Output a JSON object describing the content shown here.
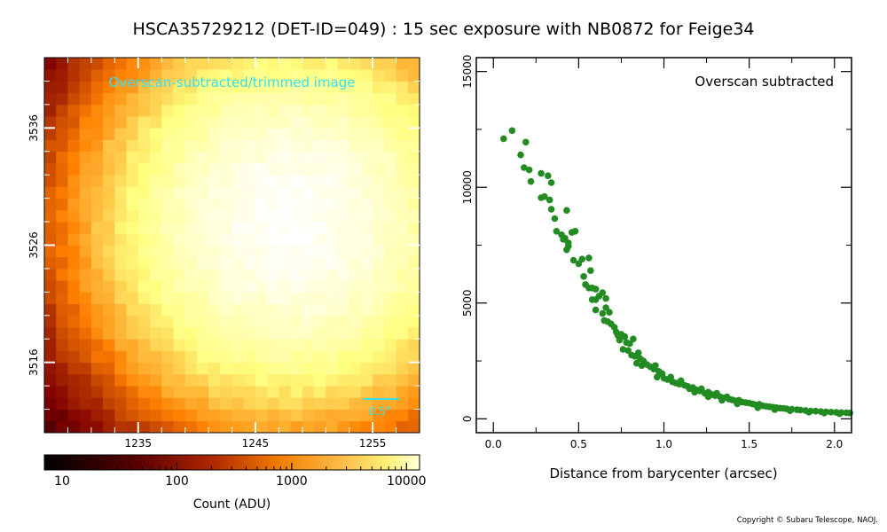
{
  "title": "HSCA35729212 (DET-ID=049) :  15 sec exposure with NB0872 for Feige34",
  "copyright": "Copyright © Subaru Telescope, NAOJ.",
  "colors": {
    "scatter": "#228b22",
    "overlay_text": "#33e0f0",
    "scalebar": "#33e0f0"
  },
  "chart_data": [
    {
      "type": "heatmap",
      "label": "Overscan-subtracted/trimmed image",
      "colormap": "afmhot",
      "x_ticks": [
        "1235",
        "1245",
        "1255"
      ],
      "y_ticks": [
        "3536",
        "3526",
        "3516"
      ],
      "xlim": [
        1227,
        1259
      ],
      "ylim": [
        3510,
        3542
      ],
      "peak_center": [
        1248,
        3528
      ],
      "scalebar_label": "0.5\"",
      "colorbar": {
        "scale": "log",
        "range": [
          7,
          13000
        ],
        "tick_labels": [
          "10",
          "100",
          "1000",
          "10000"
        ],
        "label": "Count (ADU)"
      }
    },
    {
      "type": "scatter",
      "annotation": "Overscan subtracted",
      "xlabel": "Distance from barycenter (arcsec)",
      "ylabel": "",
      "xlim": [
        -0.1,
        2.1
      ],
      "ylim": [
        -600,
        15600
      ],
      "x_ticks": [
        "0.0",
        "0.5",
        "1.0",
        "1.5",
        "2.0"
      ],
      "y_ticks": [
        "0",
        "5000",
        "10000",
        "15000"
      ],
      "points": [
        [
          0.06,
          12100
        ],
        [
          0.11,
          12450
        ],
        [
          0.16,
          11400
        ],
        [
          0.19,
          11950
        ],
        [
          0.18,
          10850
        ],
        [
          0.21,
          10750
        ],
        [
          0.22,
          10250
        ],
        [
          0.28,
          10600
        ],
        [
          0.32,
          10500
        ],
        [
          0.34,
          10200
        ],
        [
          0.28,
          9550
        ],
        [
          0.3,
          9600
        ],
        [
          0.33,
          9450
        ],
        [
          0.34,
          9050
        ],
        [
          0.36,
          8650
        ],
        [
          0.43,
          9000
        ],
        [
          0.37,
          8100
        ],
        [
          0.4,
          7950
        ],
        [
          0.41,
          7750
        ],
        [
          0.42,
          7800
        ],
        [
          0.44,
          7600
        ],
        [
          0.46,
          8050
        ],
        [
          0.48,
          8100
        ],
        [
          0.43,
          7300
        ],
        [
          0.44,
          7450
        ],
        [
          0.47,
          6850
        ],
        [
          0.5,
          6700
        ],
        [
          0.52,
          6900
        ],
        [
          0.56,
          6950
        ],
        [
          0.57,
          6400
        ],
        [
          0.53,
          6150
        ],
        [
          0.54,
          5800
        ],
        [
          0.56,
          5650
        ],
        [
          0.58,
          5650
        ],
        [
          0.6,
          5600
        ],
        [
          0.58,
          5150
        ],
        [
          0.6,
          5150
        ],
        [
          0.62,
          5300
        ],
        [
          0.64,
          5450
        ],
        [
          0.66,
          5200
        ],
        [
          0.6,
          4700
        ],
        [
          0.64,
          4550
        ],
        [
          0.66,
          4800
        ],
        [
          0.68,
          4600
        ],
        [
          0.65,
          4250
        ],
        [
          0.67,
          4200
        ],
        [
          0.69,
          4100
        ],
        [
          0.71,
          3950
        ],
        [
          0.72,
          3750
        ],
        [
          0.73,
          3600
        ],
        [
          0.74,
          3400
        ],
        [
          0.75,
          3650
        ],
        [
          0.77,
          3550
        ],
        [
          0.78,
          3300
        ],
        [
          0.8,
          3250
        ],
        [
          0.82,
          3450
        ],
        [
          0.76,
          3000
        ],
        [
          0.79,
          2950
        ],
        [
          0.81,
          2750
        ],
        [
          0.83,
          2700
        ],
        [
          0.85,
          2850
        ],
        [
          0.86,
          2600
        ],
        [
          0.88,
          2500
        ],
        [
          0.9,
          2350
        ],
        [
          0.84,
          2400
        ],
        [
          0.87,
          2300
        ],
        [
          0.92,
          2250
        ],
        [
          0.94,
          2150
        ],
        [
          0.95,
          2300
        ],
        [
          0.97,
          2050
        ],
        [
          0.99,
          1950
        ],
        [
          0.96,
          1800
        ],
        [
          1.0,
          1750
        ],
        [
          1.02,
          1700
        ],
        [
          1.04,
          1800
        ],
        [
          1.05,
          1600
        ],
        [
          1.07,
          1550
        ],
        [
          1.09,
          1500
        ],
        [
          1.1,
          1650
        ],
        [
          1.12,
          1450
        ],
        [
          1.14,
          1400
        ],
        [
          1.15,
          1300
        ],
        [
          1.17,
          1350
        ],
        [
          1.19,
          1250
        ],
        [
          1.21,
          1200
        ],
        [
          1.22,
          1300
        ],
        [
          1.24,
          1100
        ],
        [
          1.26,
          1150
        ],
        [
          1.28,
          1050
        ],
        [
          1.3,
          1000
        ],
        [
          1.31,
          1100
        ],
        [
          1.33,
          950
        ],
        [
          1.35,
          900
        ],
        [
          1.37,
          950
        ],
        [
          1.38,
          850
        ],
        [
          1.4,
          820
        ],
        [
          1.42,
          780
        ],
        [
          1.44,
          800
        ],
        [
          1.46,
          720
        ],
        [
          1.48,
          700
        ],
        [
          1.5,
          680
        ],
        [
          1.52,
          640
        ],
        [
          1.54,
          600
        ],
        [
          1.56,
          620
        ],
        [
          1.58,
          560
        ],
        [
          1.6,
          540
        ],
        [
          1.62,
          520
        ],
        [
          1.64,
          500
        ],
        [
          1.66,
          480
        ],
        [
          1.68,
          460
        ],
        [
          1.7,
          450
        ],
        [
          1.72,
          430
        ],
        [
          1.75,
          410
        ],
        [
          1.78,
          390
        ],
        [
          1.8,
          380
        ],
        [
          1.83,
          360
        ],
        [
          1.86,
          340
        ],
        [
          1.89,
          330
        ],
        [
          1.92,
          310
        ],
        [
          1.95,
          300
        ],
        [
          1.98,
          290
        ],
        [
          2.01,
          280
        ],
        [
          2.04,
          270
        ],
        [
          2.07,
          260
        ],
        [
          2.09,
          250
        ],
        [
          1.18,
          1150
        ],
        [
          1.26,
          950
        ],
        [
          1.34,
          800
        ],
        [
          1.43,
          650
        ],
        [
          1.55,
          480
        ],
        [
          1.65,
          400
        ],
        [
          1.74,
          350
        ],
        [
          1.85,
          290
        ],
        [
          1.94,
          250
        ],
        [
          2.03,
          220
        ]
      ]
    }
  ]
}
